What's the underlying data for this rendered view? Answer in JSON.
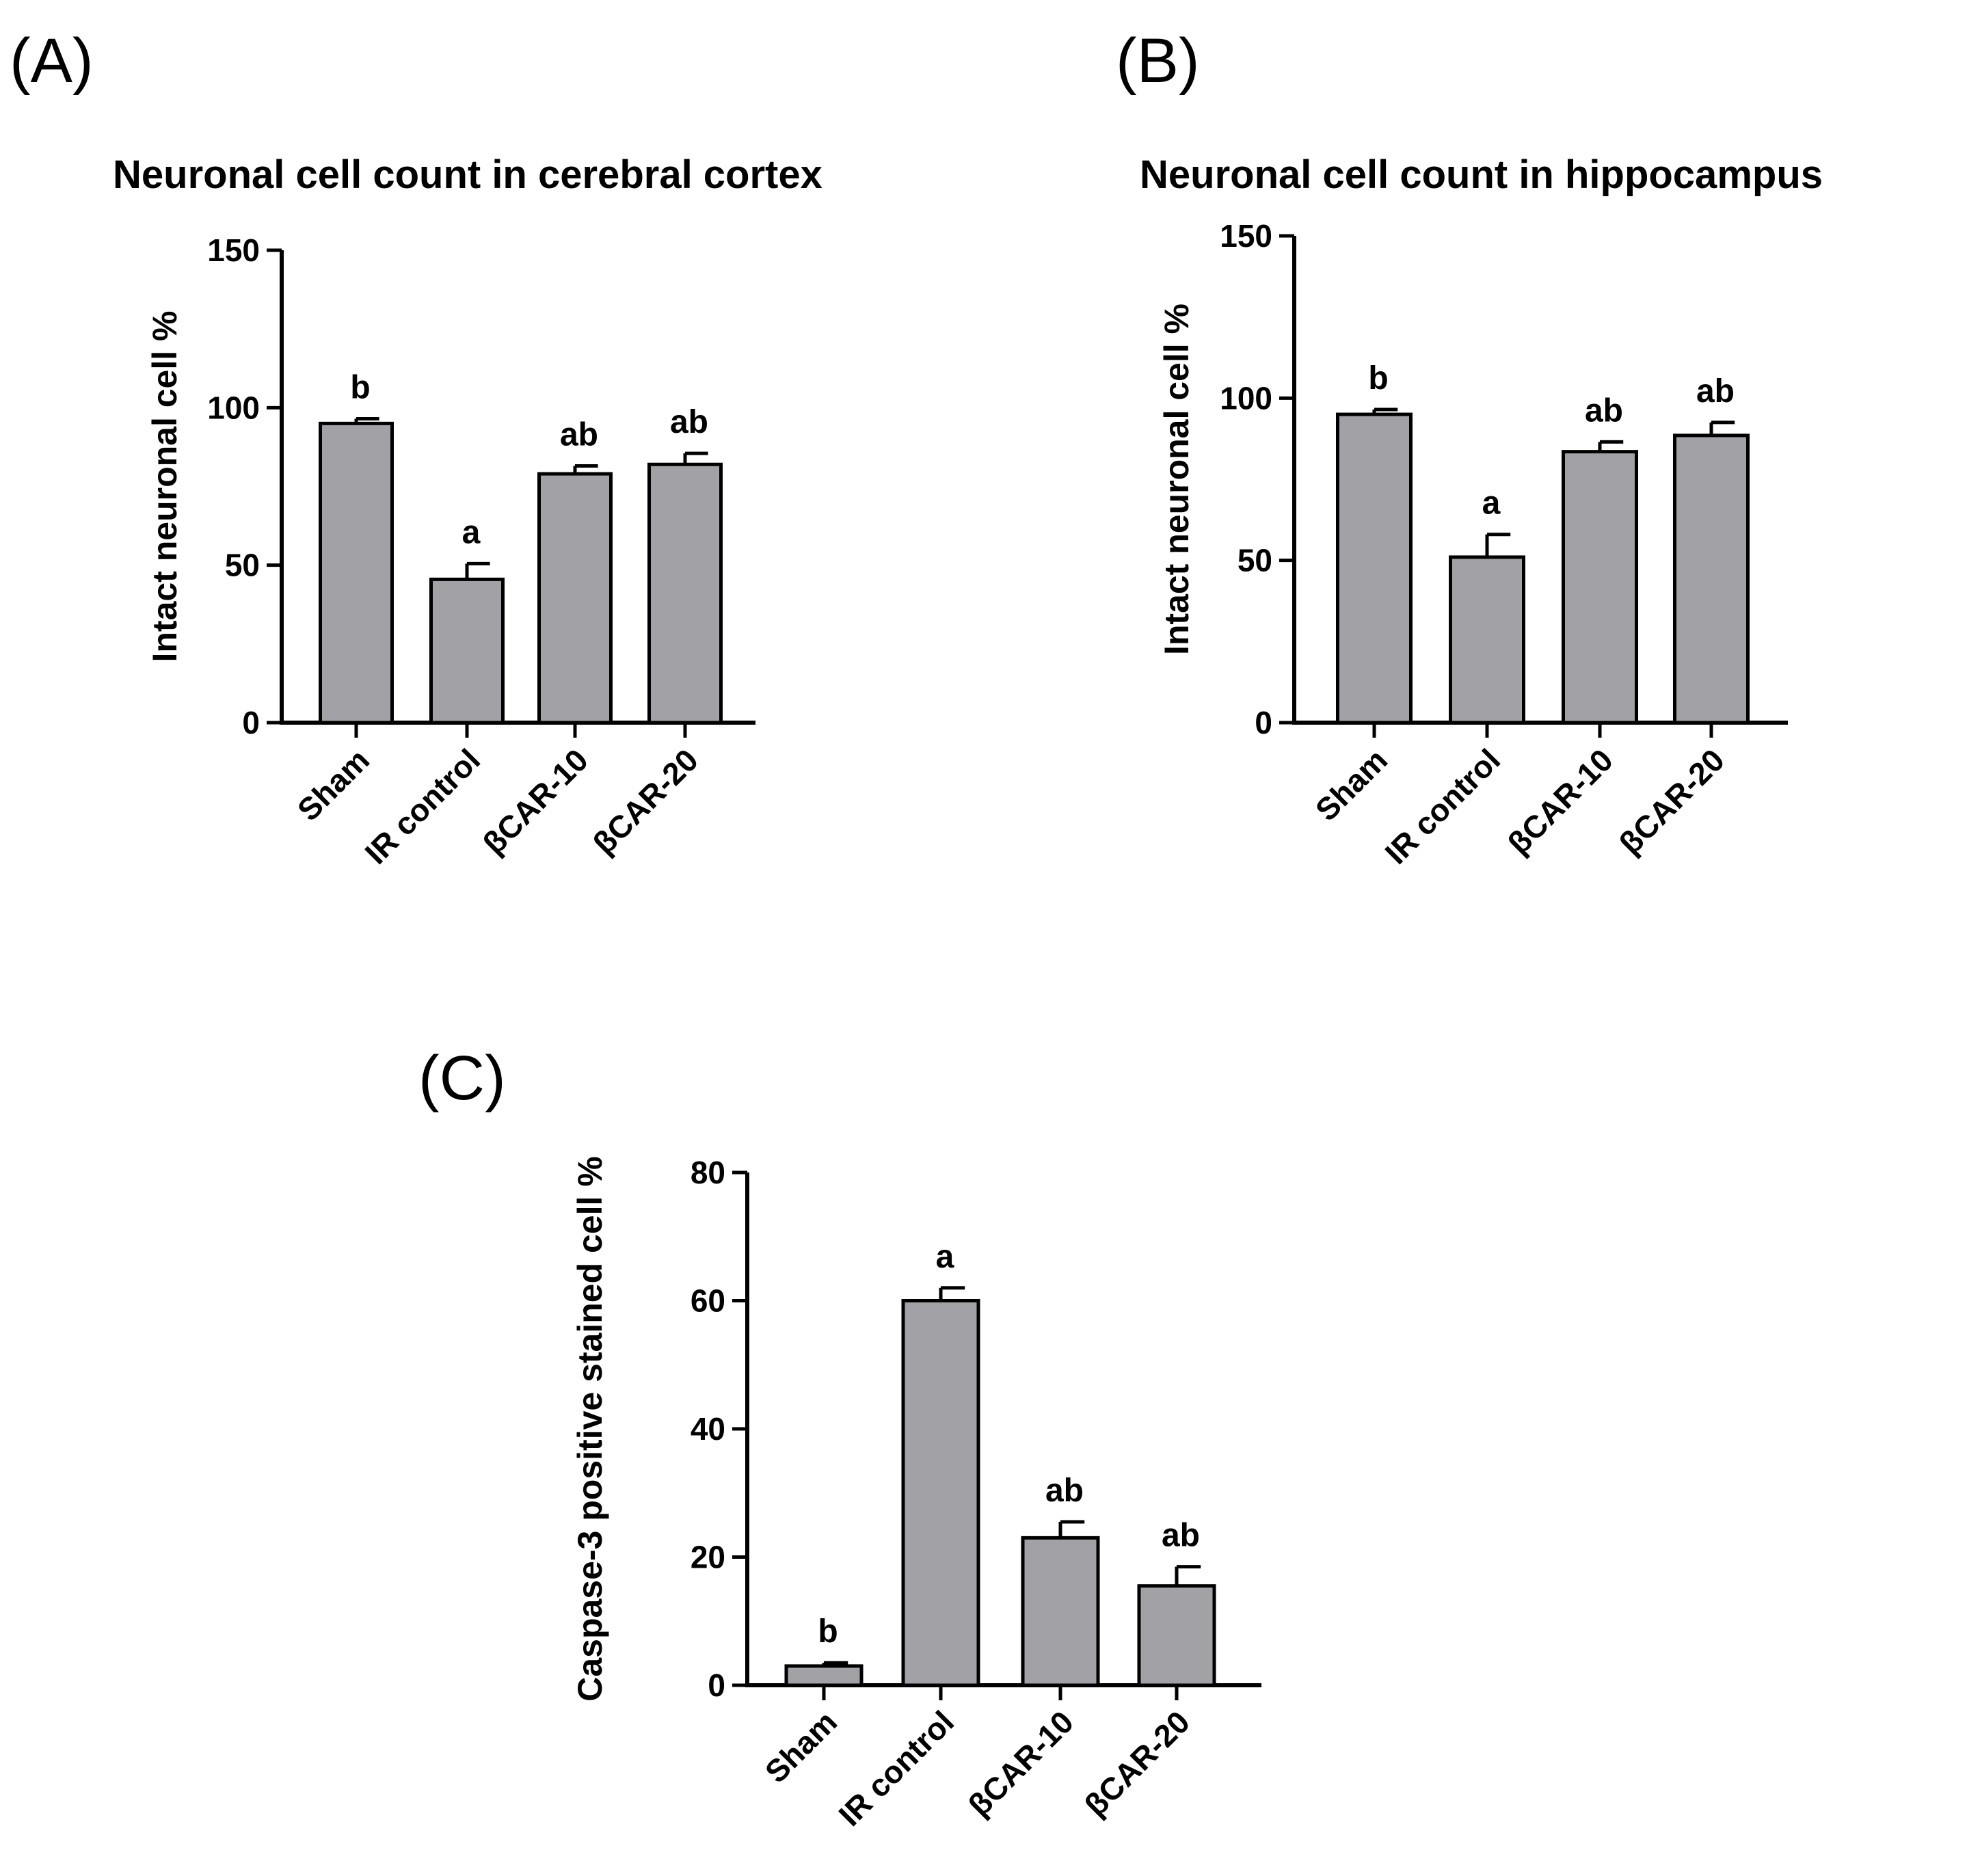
{
  "figure": {
    "panel_labels": [
      "(A)",
      "(B)",
      "(C)"
    ]
  },
  "chart_data": [
    {
      "panel": "(A)",
      "type": "bar",
      "title": "Neuronal cell count in cerebral cortex",
      "xlabel": "",
      "ylabel": "Intact neuronal cell %",
      "categories": [
        "Sham",
        "IR control",
        "βCAR-10",
        "βCAR-20"
      ],
      "values": [
        95,
        45.5,
        79,
        82
      ],
      "errors": [
        1.5,
        5,
        2.5,
        3.5
      ],
      "significance": [
        "b",
        "a",
        "ab",
        "ab"
      ],
      "ylim": [
        0,
        150
      ],
      "yticks": [
        0,
        50,
        100,
        150
      ]
    },
    {
      "panel": "(B)",
      "type": "bar",
      "title": "Neuronal cell count in hippocampus",
      "xlabel": "",
      "ylabel": "Intact neuronal cell %",
      "categories": [
        "Sham",
        "IR control",
        "βCAR-10",
        "βCAR-20"
      ],
      "values": [
        95,
        51,
        83.5,
        88.5
      ],
      "errors": [
        1.5,
        7,
        3,
        4
      ],
      "significance": [
        "b",
        "a",
        "ab",
        "ab"
      ],
      "ylim": [
        0,
        150
      ],
      "yticks": [
        0,
        50,
        100,
        150
      ]
    },
    {
      "panel": "(C)",
      "type": "bar",
      "title": "",
      "xlabel": "",
      "ylabel": "Caspase-3 positive stained cell %",
      "categories": [
        "Sham",
        "IR control",
        "βCAR-10",
        "βCAR-20"
      ],
      "values": [
        3,
        60,
        23,
        15.5
      ],
      "errors": [
        0.5,
        2,
        2.5,
        3
      ],
      "significance": [
        "b",
        "a",
        "ab",
        "ab"
      ],
      "ylim": [
        0,
        80
      ],
      "yticks": [
        0,
        20,
        40,
        60,
        80
      ]
    }
  ]
}
